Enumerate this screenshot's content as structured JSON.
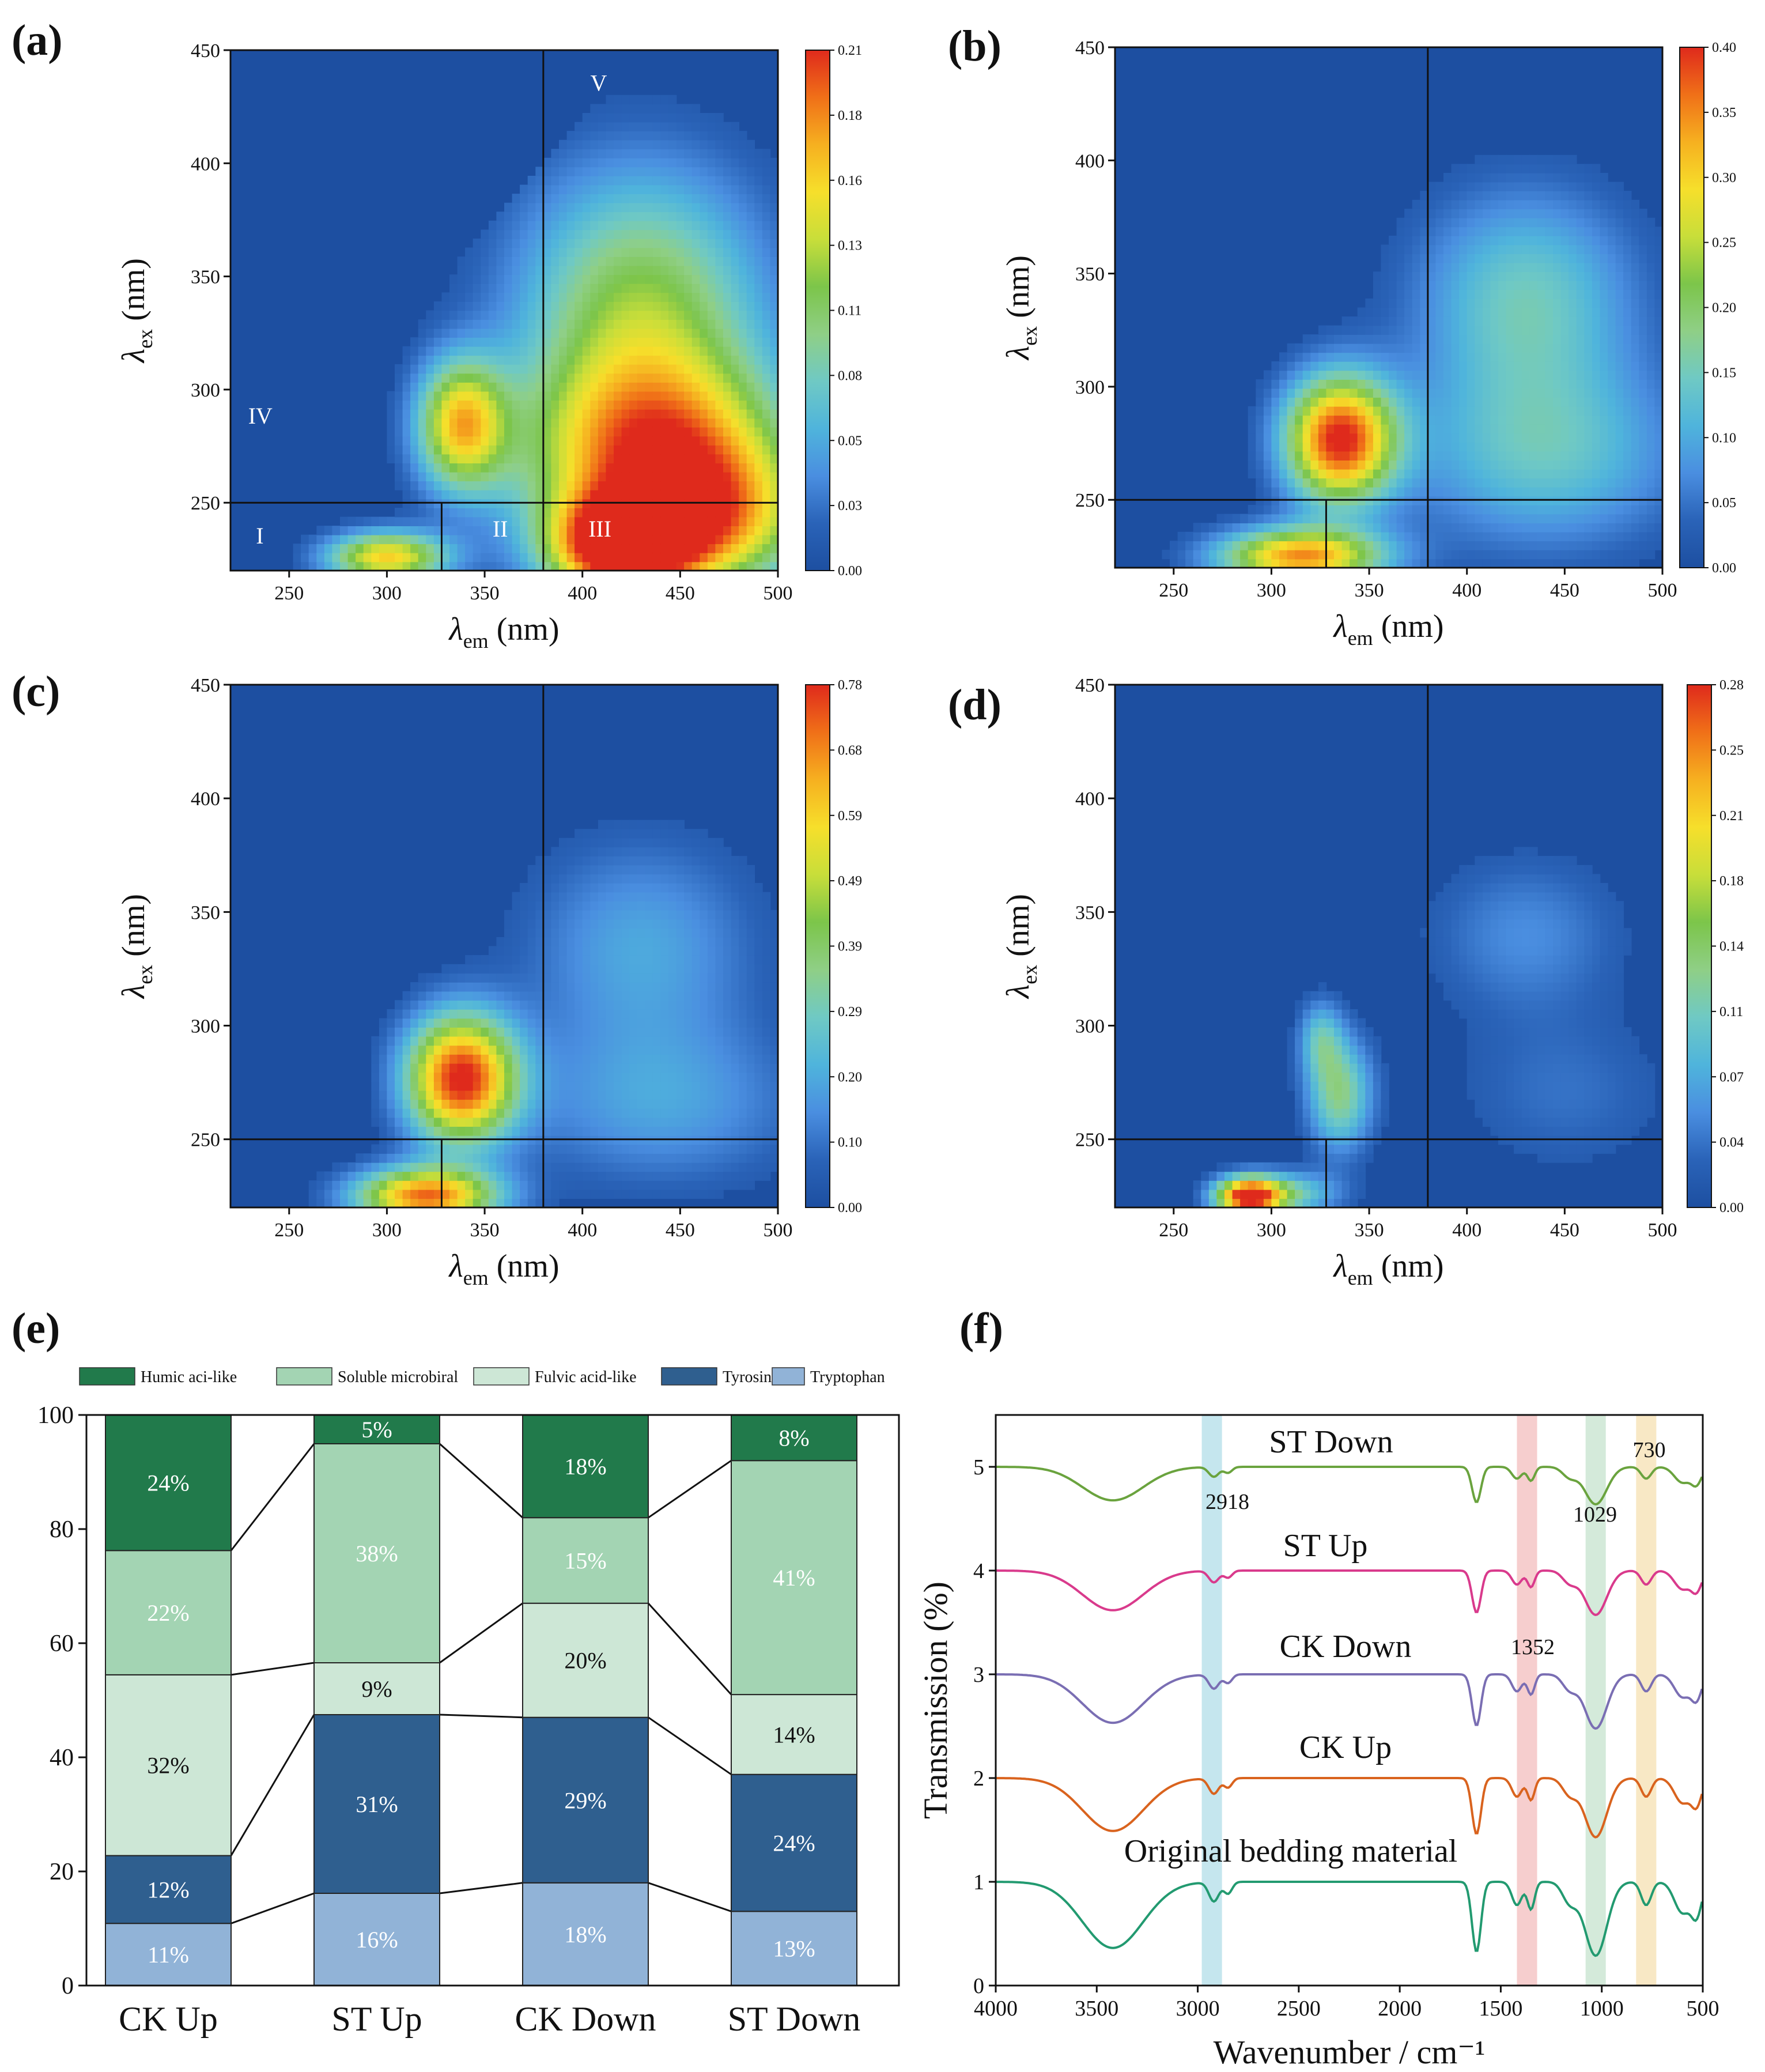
{
  "colors": {
    "eem_stops": [
      "#1d4fa1",
      "#2a63b8",
      "#4a8ee0",
      "#4fb4dc",
      "#6fc9c4",
      "#8fcf86",
      "#7cc54a",
      "#c8de3a",
      "#f6df2b",
      "#f6b020",
      "#f07018",
      "#df2a1c"
    ],
    "humic": "#217a4b",
    "soluble": "#a3d4b3",
    "fulvic": "#cde7d6",
    "tyrosine": "#2f5f8f",
    "tryptophan": "#91b3d7",
    "st_down": "#6aa33e",
    "st_up": "#d93a8c",
    "ck_down": "#7a6eb3",
    "ck_up": "#d9631e",
    "orig": "#229a70",
    "band_2918": "#bfe3ec",
    "band_1352": "#f5c9c9",
    "band_1029": "#cfe8d6",
    "band_730": "#f7e6bf"
  },
  "chart_data": [
    {
      "type": "heatmap",
      "panel_label": "(a)",
      "xlabel_main": "λ",
      "xlabel_sub": "em",
      "xlabel_unit": " (nm)",
      "ylabel_main": "λ",
      "ylabel_sub": "ex",
      "ylabel_unit": " (nm)",
      "xlim": [
        220,
        500
      ],
      "ylim": [
        220,
        450
      ],
      "xticks": [
        "250",
        "300",
        "350",
        "400",
        "450",
        "500"
      ],
      "yticks": [
        "250",
        "300",
        "350",
        "400",
        "450"
      ],
      "colorbar_ticks": [
        "0.00",
        "0.03",
        "0.05",
        "0.08",
        "0.11",
        "0.13",
        "0.16",
        "0.18",
        "0.21"
      ],
      "region_labels": [
        "I",
        "II",
        "III",
        "IV",
        "V"
      ],
      "peaks": [
        {
          "x": 438,
          "y": 270,
          "sx": 50,
          "sy": 30,
          "v": 0.78
        },
        {
          "x": 430,
          "y": 335,
          "sx": 45,
          "sy": 45,
          "v": 0.55
        },
        {
          "x": 420,
          "y": 230,
          "sx": 26,
          "sy": 16,
          "v": 1.0
        },
        {
          "x": 338,
          "y": 285,
          "sx": 16,
          "sy": 20,
          "v": 0.72
        },
        {
          "x": 300,
          "y": 226,
          "sx": 22,
          "sy": 8,
          "v": 0.75
        },
        {
          "x": 470,
          "y": 240,
          "sx": 35,
          "sy": 22,
          "v": 0.5
        }
      ]
    },
    {
      "type": "heatmap",
      "panel_label": "(b)",
      "xlabel_main": "λ",
      "xlabel_sub": "em",
      "xlabel_unit": " (nm)",
      "ylabel_main": "λ",
      "ylabel_sub": "ex",
      "ylabel_unit": " (nm)",
      "xlim": [
        220,
        500
      ],
      "ylim": [
        220,
        450
      ],
      "xticks": [
        "250",
        "300",
        "350",
        "400",
        "450",
        "500"
      ],
      "yticks": [
        "250",
        "300",
        "350",
        "400",
        "450"
      ],
      "colorbar_ticks": [
        "0.00",
        "0.05",
        "0.10",
        "0.15",
        "0.20",
        "0.25",
        "0.30",
        "0.35",
        "0.40"
      ],
      "region_labels": [],
      "peaks": [
        {
          "x": 335,
          "y": 277,
          "sx": 20,
          "sy": 20,
          "v": 1.0
        },
        {
          "x": 430,
          "y": 340,
          "sx": 40,
          "sy": 34,
          "v": 0.36
        },
        {
          "x": 440,
          "y": 270,
          "sx": 50,
          "sy": 30,
          "v": 0.33
        },
        {
          "x": 315,
          "y": 225,
          "sx": 30,
          "sy": 9,
          "v": 0.85
        }
      ]
    },
    {
      "type": "heatmap",
      "panel_label": "(c)",
      "xlabel_main": "λ",
      "xlabel_sub": "em",
      "xlabel_unit": " (nm)",
      "ylabel_main": "λ",
      "ylabel_sub": "ex",
      "ylabel_unit": " (nm)",
      "xlim": [
        220,
        500
      ],
      "ylim": [
        220,
        450
      ],
      "xticks": [
        "250",
        "300",
        "350",
        "400",
        "450",
        "500"
      ],
      "yticks": [
        "250",
        "300",
        "350",
        "400",
        "450"
      ],
      "colorbar_ticks": [
        "0.00",
        "0.10",
        "0.20",
        "0.29",
        "0.39",
        "0.49",
        "0.59",
        "0.68",
        "0.78"
      ],
      "region_labels": [],
      "peaks": [
        {
          "x": 338,
          "y": 277,
          "sx": 20,
          "sy": 20,
          "v": 1.0
        },
        {
          "x": 430,
          "y": 335,
          "sx": 42,
          "sy": 34,
          "v": 0.24
        },
        {
          "x": 440,
          "y": 265,
          "sx": 52,
          "sy": 26,
          "v": 0.22
        },
        {
          "x": 320,
          "y": 225,
          "sx": 26,
          "sy": 9,
          "v": 0.9
        }
      ]
    },
    {
      "type": "heatmap",
      "panel_label": "(d)",
      "xlabel_main": "λ",
      "xlabel_sub": "em",
      "xlabel_unit": " (nm)",
      "ylabel_main": "λ",
      "ylabel_sub": "ex",
      "ylabel_unit": " (nm)",
      "xlim": [
        220,
        500
      ],
      "ylim": [
        220,
        450
      ],
      "xticks": [
        "250",
        "300",
        "350",
        "400",
        "450",
        "500"
      ],
      "yticks": [
        "250",
        "300",
        "350",
        "400",
        "450"
      ],
      "colorbar_ticks": [
        "0.00",
        "0.04",
        "0.07",
        "0.11",
        "0.14",
        "0.18",
        "0.21",
        "0.25",
        "0.28"
      ],
      "region_labels": [],
      "peaks": [
        {
          "x": 335,
          "y": 270,
          "sx": 12,
          "sy": 18,
          "v": 0.45
        },
        {
          "x": 288,
          "y": 225,
          "sx": 12,
          "sy": 6,
          "v": 1.0
        },
        {
          "x": 310,
          "y": 226,
          "sx": 18,
          "sy": 7,
          "v": 0.35
        },
        {
          "x": 430,
          "y": 340,
          "sx": 35,
          "sy": 25,
          "v": 0.18
        },
        {
          "x": 450,
          "y": 270,
          "sx": 40,
          "sy": 25,
          "v": 0.12
        },
        {
          "x": 325,
          "y": 295,
          "sx": 8,
          "sy": 12,
          "v": 0.28
        }
      ]
    },
    {
      "type": "bar",
      "stacked": true,
      "panel_label": "(e)",
      "categories": [
        "CK Up",
        "ST Up",
        "CK Down",
        "ST Down"
      ],
      "ylim": [
        0,
        100
      ],
      "yticks": [
        "0",
        "20",
        "40",
        "60",
        "80",
        "100"
      ],
      "legend_placement": "top",
      "series": [
        {
          "name": "Tryptophan",
          "values": [
            11,
            16,
            18,
            13
          ],
          "labels": [
            "11%",
            "16%",
            "18%",
            "13%"
          ]
        },
        {
          "name": "Tyrosine",
          "values": [
            12,
            31,
            29,
            24
          ],
          "labels": [
            "12%",
            "31%",
            "29%",
            "24%"
          ]
        },
        {
          "name": "Fulvic acid-like",
          "values": [
            32,
            9,
            20,
            14
          ],
          "labels": [
            "32%",
            "9%",
            "20%",
            "14%"
          ]
        },
        {
          "name": "Soluble microbiral",
          "values": [
            22,
            38,
            15,
            41
          ],
          "labels": [
            "22%",
            "38%",
            "15%",
            "41%"
          ]
        },
        {
          "name": "Humic aci-like",
          "values": [
            24,
            5,
            18,
            8
          ],
          "labels": [
            "24%",
            "5%",
            "18%",
            "8%"
          ]
        }
      ],
      "legend_order": [
        "Humic aci-like",
        "Soluble microbiral",
        "Fulvic acid-like",
        "Tyrosine",
        "Tryptophan"
      ]
    },
    {
      "type": "line",
      "panel_label": "(f)",
      "xlabel": "Wavenumber / cm⁻¹",
      "ylabel": "Transmission (%)",
      "xlim": [
        4000,
        500
      ],
      "ylim": [
        0,
        5.5
      ],
      "xticks": [
        "4000",
        "3500",
        "3000",
        "2500",
        "2000",
        "1500",
        "1000",
        "500"
      ],
      "yticks": [
        "0",
        "1",
        "2",
        "3",
        "4",
        "5"
      ],
      "bands": [
        {
          "label": "2918",
          "from": 2980,
          "to": 2880
        },
        {
          "label": "1352",
          "from": 1420,
          "to": 1320
        },
        {
          "label": "1029",
          "from": 1080,
          "to": 980
        },
        {
          "label": "730",
          "from": 830,
          "to": 730
        }
      ],
      "series": [
        {
          "name": "ST Down",
          "offset": 5.0,
          "scale": 0.38
        },
        {
          "name": "ST Up",
          "offset": 4.0,
          "scale": 0.45
        },
        {
          "name": "CK Down",
          "offset": 3.0,
          "scale": 0.55
        },
        {
          "name": "CK Up",
          "offset": 2.0,
          "scale": 0.6
        },
        {
          "name": "Original bedding material",
          "offset": 1.0,
          "scale": 0.75
        }
      ]
    }
  ]
}
